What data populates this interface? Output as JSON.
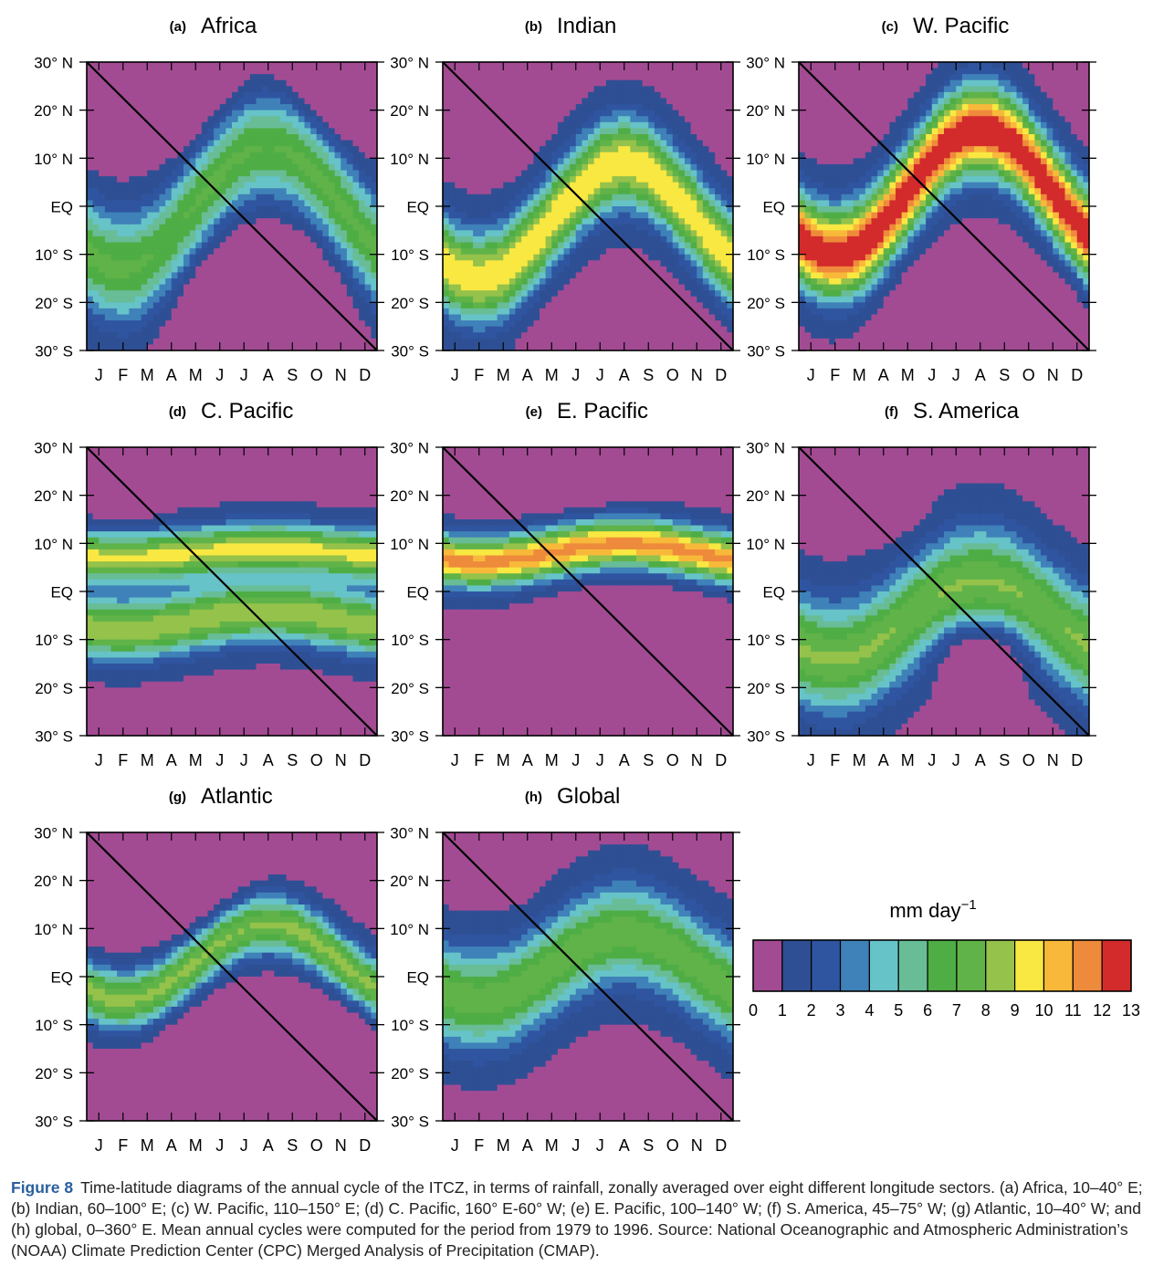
{
  "figure": {
    "caption_label": "Figure 8",
    "caption_text": "Time-latitude diagrams of the annual cycle of the ITCZ, in terms of rainfall, zonally averaged over eight different longitude sectors. (a) Africa, 10–40° E; (b) Indian, 60–100° E; (c) W. Pacific, 110–150° E; (d) C. Pacific, 160° E-60° W; (e) E. Pacific, 100–140° W; (f) S. America, 45–75° W; (g) Atlantic, 10–40° W; and (h) global, 0–360° E. Mean annual cycles were computed for the period from 1979 to 1996. Source: National Oceanographic and Atmospheric Administration’s (NOAA) Climate Prediction Center (CPC) Merged Analysis of Precipitation (CMAP)."
  },
  "chart_data": {
    "type": "heatmap",
    "x_tick_labels": [
      "J",
      "F",
      "M",
      "A",
      "M",
      "J",
      "J",
      "A",
      "S",
      "O",
      "N",
      "D"
    ],
    "y_tick_labels": [
      "30° N",
      "20° N",
      "10° N",
      "EQ",
      "10° S",
      "20° S",
      "30° S"
    ],
    "y_values": [
      30,
      20,
      10,
      0,
      -10,
      -20,
      -30
    ],
    "colorbar": {
      "unit_label": "mm day",
      "unit_exponent": "−1",
      "levels": [
        "0",
        "1",
        "2",
        "3",
        "4",
        "5",
        "6",
        "7",
        "8",
        "9",
        "10",
        "11",
        "12",
        "13"
      ],
      "colors": [
        "#a24b93",
        "#2f4f94",
        "#2f55a0",
        "#3f81b9",
        "#66c3c8",
        "#68bd97",
        "#4fad45",
        "#60b348",
        "#94c24b",
        "#f9e841",
        "#f8b93a",
        "#ee8a3b",
        "#d32a2c"
      ]
    },
    "panels": [
      {
        "id": "a",
        "letter": "(a)",
        "title": "Africa",
        "bands": [
          {
            "lat": 0,
            "amp": 13,
            "width": 11,
            "peak": 6.5
          }
        ],
        "dry": [
          {
            "month": 7,
            "lat": -18,
            "rx": 3.2,
            "ry": 13
          },
          {
            "month": 2,
            "lat": 25,
            "rx": 4,
            "ry": 12
          },
          {
            "month": 11,
            "lat": 25,
            "rx": 3,
            "ry": 10
          }
        ]
      },
      {
        "id": "b",
        "letter": "(b)",
        "title": "Indian",
        "bands": [
          {
            "lat": -3,
            "amp": 12,
            "width": 9,
            "peak": 9.2
          }
        ],
        "dry": [
          {
            "month": 8,
            "lat": -25,
            "rx": 2.5,
            "ry": 5
          }
        ]
      },
      {
        "id": "c",
        "letter": "(c)",
        "title": "W. Pacific",
        "bands": [
          {
            "lat": 3,
            "amp": 13,
            "width": 9,
            "peak": 12.4
          }
        ],
        "dry": [
          {
            "month": 8,
            "lat": -22,
            "rx": 3,
            "ry": 8
          }
        ]
      },
      {
        "id": "d",
        "letter": "(d)",
        "title": "C. Pacific",
        "bands": [
          {
            "lat": 8,
            "amp": 1,
            "width": 5,
            "peak": 8.5
          },
          {
            "lat": -6,
            "amp": 2,
            "width": 6,
            "peak": 8
          }
        ],
        "dry": [
          {
            "month": 1.5,
            "lat": 19,
            "rx": 1.3,
            "ry": 3
          }
        ]
      },
      {
        "id": "e",
        "letter": "(e)",
        "title": "E. Pacific",
        "bands": [
          {
            "lat": 8,
            "amp": 2,
            "width": 5,
            "peak": 10.5
          }
        ],
        "dry": [
          {
            "month": 4,
            "lat": 26,
            "rx": 4,
            "ry": 7
          },
          {
            "month": 8,
            "lat": -10,
            "rx": 3.2,
            "ry": 9
          }
        ]
      },
      {
        "id": "f",
        "letter": "(f)",
        "title": "S. America",
        "bands": [
          {
            "lat": -6,
            "amp": 8,
            "width": 11,
            "peak": 7.3
          }
        ],
        "dry": [
          {
            "month": 7.5,
            "lat": -12,
            "rx": 2,
            "ry": 7
          },
          {
            "month": 2,
            "lat": 16,
            "rx": 2,
            "ry": 4
          }
        ]
      },
      {
        "id": "g",
        "letter": "(g)",
        "title": "Atlantic",
        "bands": [
          {
            "lat": 3,
            "amp": 8,
            "width": 6,
            "peak": 7.5
          }
        ],
        "dry": [
          {
            "month": 8,
            "lat": -14,
            "rx": 4,
            "ry": 9
          },
          {
            "month": 2,
            "lat": 20,
            "rx": 4,
            "ry": 10
          }
        ]
      },
      {
        "id": "h",
        "letter": "(h)",
        "title": "Global",
        "bands": [
          {
            "lat": 2,
            "amp": 7,
            "width": 10,
            "peak": 6.8
          }
        ],
        "dry": [
          {
            "month": 8,
            "lat": -19,
            "rx": 1.3,
            "ry": 3
          },
          {
            "month": 1.5,
            "lat": 19,
            "rx": 1.4,
            "ry": 3
          }
        ]
      }
    ]
  }
}
